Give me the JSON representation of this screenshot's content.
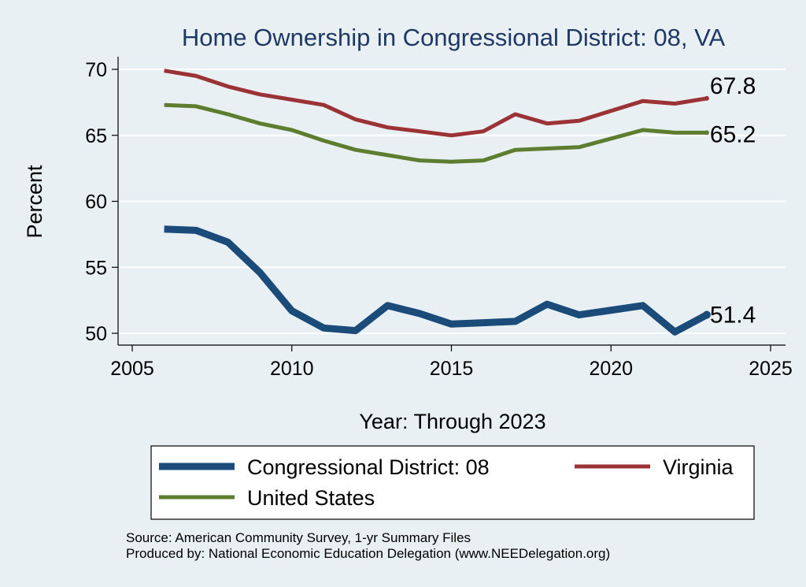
{
  "chart_data": {
    "type": "line",
    "title": "Home Ownership in Congressional District:  08, VA",
    "xlabel": "Year: Through 2023",
    "ylabel": "Percent",
    "xlim": [
      2005,
      2025
    ],
    "ylim": [
      50,
      70
    ],
    "xticks": [
      2005,
      2010,
      2015,
      2020,
      2025
    ],
    "yticks": [
      50,
      55,
      60,
      65,
      70
    ],
    "grid": true,
    "legend_position": "bottom",
    "series": [
      {
        "name": "Congressional District:  08",
        "color": "#1b4b78",
        "x": [
          2006,
          2007,
          2008,
          2009,
          2010,
          2011,
          2012,
          2013,
          2014,
          2015,
          2016,
          2017,
          2018,
          2019,
          2021,
          2022,
          2023
        ],
        "values": [
          57.9,
          57.8,
          56.9,
          54.6,
          51.7,
          50.4,
          50.2,
          52.1,
          51.5,
          50.7,
          50.8,
          50.9,
          52.2,
          51.4,
          52.1,
          50.1,
          51.4
        ],
        "end_label": "51.4"
      },
      {
        "name": "Virginia",
        "color": "#9b3236",
        "x": [
          2006,
          2007,
          2008,
          2009,
          2010,
          2011,
          2012,
          2013,
          2014,
          2015,
          2016,
          2017,
          2018,
          2019,
          2021,
          2022,
          2023
        ],
        "values": [
          69.9,
          69.5,
          68.7,
          68.1,
          67.7,
          67.3,
          66.2,
          65.6,
          65.3,
          65.0,
          65.3,
          66.6,
          65.9,
          66.1,
          67.6,
          67.4,
          67.8
        ],
        "end_label": "67.8"
      },
      {
        "name": "United States",
        "color": "#5e7d30",
        "x": [
          2006,
          2007,
          2008,
          2009,
          2010,
          2011,
          2012,
          2013,
          2014,
          2015,
          2016,
          2017,
          2018,
          2019,
          2021,
          2022,
          2023
        ],
        "values": [
          67.3,
          67.2,
          66.6,
          65.9,
          65.4,
          64.6,
          63.9,
          63.5,
          63.1,
          63.0,
          63.1,
          63.9,
          64.0,
          64.1,
          65.4,
          65.2,
          65.2
        ],
        "end_label": "65.2"
      }
    ],
    "source_lines": [
      "Source: American Community Survey, 1-yr Summary Files",
      "Produced by: National Economic Education Delegation (www.NEEDelegation.org)"
    ]
  }
}
